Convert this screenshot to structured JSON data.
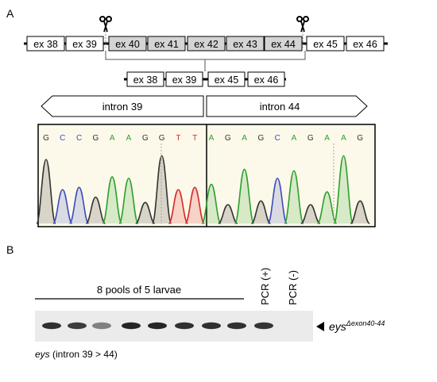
{
  "panel_a": {
    "label": "A",
    "top_exons": [
      "ex 38",
      "ex 39",
      "ex 40",
      "ex 41",
      "ex 42",
      "ex 43",
      "ex 44",
      "ex 45",
      "ex 46"
    ],
    "deleted_exons": [
      "ex 40",
      "ex 41",
      "ex 42",
      "ex 43",
      "ex 44"
    ],
    "bottom_exons": [
      "ex 38",
      "ex 39",
      "ex 45",
      "ex 46"
    ],
    "scissors_icon": "scissors-icon",
    "intron_left": "intron 39",
    "intron_right": "intron 44",
    "sequence_left": [
      "G",
      "C",
      "C",
      "G",
      "A",
      "A",
      "G",
      "G",
      "T",
      "T"
    ],
    "sequence_right": [
      "A",
      "G",
      "A",
      "G",
      "C",
      "A",
      "G",
      "A",
      "A",
      "G"
    ],
    "base_colors": {
      "G": "#333333",
      "C": "#3b4cc0",
      "A": "#2ca02c",
      "T": "#d62728"
    },
    "chromatogram_bg": "#fdf9ea"
  },
  "panel_b": {
    "label": "B",
    "pools_label": "8 pools of 5 larvae",
    "lane_labels": [
      "PCR (+)",
      "PCR (-)"
    ],
    "band_label_main": "eys",
    "band_label_super": "Δexon40-44",
    "caption_italic": "eys",
    "caption_rest": " (intron 39 > 44)",
    "band_intensities": [
      0.9,
      0.85,
      0.55,
      0.95,
      0.95,
      0.9,
      0.9,
      0.9,
      0.88,
      0
    ]
  }
}
